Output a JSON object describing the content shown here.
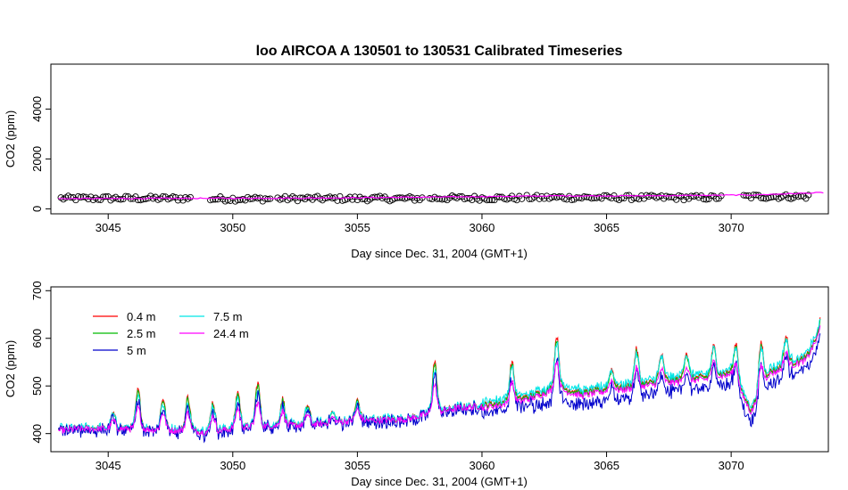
{
  "chart_data": [
    {
      "type": "scatter",
      "title": "loo   AIRCOA  A    130501  to  130531   Calibrated Timeseries",
      "xlabel": "Day since Dec. 31, 2004 (GMT+1)",
      "ylabel": "CO2 (ppm)",
      "xlim": [
        3042.7,
        3073.9
      ],
      "ylim": [
        -200,
        5800
      ],
      "x_ticks": [
        3045,
        3050,
        3055,
        3060,
        3065,
        3070
      ],
      "y_ticks": [
        0,
        2000,
        4000
      ],
      "colors": {
        "points": "#000000",
        "line": "#ff00ff",
        "line2": "#0000cc"
      },
      "point_clusters": [
        {
          "x_start": 3043.1,
          "x_end": 3048.3,
          "y": 420
        },
        {
          "x_start": 3049.1,
          "x_end": 3051.5,
          "y": 400
        },
        {
          "x_start": 3051.8,
          "x_end": 3057.6,
          "y": 410
        },
        {
          "x_start": 3057.9,
          "x_end": 3061.6,
          "y": 430
        },
        {
          "x_start": 3061.8,
          "x_end": 3069.6,
          "y": 450
        },
        {
          "x_start": 3070.5,
          "x_end": 3073.1,
          "y": 490
        }
      ],
      "line": {
        "x": [
          3043.0,
          3048,
          3053,
          3058,
          3063,
          3066,
          3069,
          3071,
          3073.7
        ],
        "y": [
          410,
          420,
          430,
          470,
          520,
          520,
          540,
          560,
          650
        ]
      }
    },
    {
      "type": "line",
      "xlabel": "Day since Dec. 31, 2004 (GMT+1)",
      "ylabel": "CO2 (ppm)",
      "xlim": [
        3042.7,
        3073.9
      ],
      "ylim": [
        362,
        708
      ],
      "x_ticks": [
        3045,
        3050,
        3055,
        3060,
        3065,
        3070
      ],
      "y_ticks": [
        400,
        500,
        600,
        700
      ],
      "legend_position": "top-left",
      "series": [
        {
          "name": "0.4 m",
          "color": "#ff0000",
          "peak_scale": 1.0,
          "offset": 0
        },
        {
          "name": "2.5 m",
          "color": "#00bb00",
          "peak_scale": 0.95,
          "offset": -2
        },
        {
          "name": "5 m",
          "color": "#0000cc",
          "peak_scale": 0.75,
          "offset": -18
        },
        {
          "name": "7.5 m",
          "color": "#00e5e5",
          "peak_scale": 0.8,
          "offset": 6
        },
        {
          "name": "24.4 m",
          "color": "#ff00ff",
          "peak_scale": 0.55,
          "offset": -6
        }
      ],
      "baseline": {
        "x": [
          3043.0,
          3044.0,
          3045.0,
          3046.0,
          3047.0,
          3048.0,
          3049.0,
          3050.0,
          3051.0,
          3052.0,
          3053.0,
          3054.0,
          3055.0,
          3056.0,
          3057.0,
          3058.0,
          3059.0,
          3060.0,
          3061.0,
          3062.0,
          3063.0,
          3064.0,
          3065.0,
          3066.0,
          3067.0,
          3068.0,
          3069.0,
          3070.0,
          3070.8,
          3071.5,
          3072.0,
          3073.0,
          3073.6
        ],
        "y": [
          408,
          412,
          412,
          412,
          410,
          408,
          405,
          412,
          418,
          418,
          420,
          425,
          430,
          430,
          432,
          445,
          455,
          460,
          468,
          480,
          500,
          485,
          495,
          500,
          510,
          515,
          520,
          530,
          450,
          530,
          540,
          560,
          620
        ]
      },
      "peaks": [
        {
          "x": 3045.2,
          "h": 30
        },
        {
          "x": 3046.2,
          "h": 80
        },
        {
          "x": 3047.2,
          "h": 65
        },
        {
          "x": 3048.2,
          "h": 70
        },
        {
          "x": 3049.2,
          "h": 60
        },
        {
          "x": 3050.2,
          "h": 75
        },
        {
          "x": 3051.0,
          "h": 90
        },
        {
          "x": 3052.0,
          "h": 55
        },
        {
          "x": 3053.0,
          "h": 40
        },
        {
          "x": 3054.0,
          "h": 20
        },
        {
          "x": 3055.0,
          "h": 40
        },
        {
          "x": 3058.1,
          "h": 105
        },
        {
          "x": 3061.2,
          "h": 80
        },
        {
          "x": 3063.0,
          "h": 105
        },
        {
          "x": 3065.2,
          "h": 40
        },
        {
          "x": 3066.2,
          "h": 75
        },
        {
          "x": 3067.2,
          "h": 55
        },
        {
          "x": 3068.2,
          "h": 55
        },
        {
          "x": 3069.3,
          "h": 60
        },
        {
          "x": 3070.2,
          "h": 80
        },
        {
          "x": 3071.2,
          "h": 95
        },
        {
          "x": 3072.2,
          "h": 60
        },
        {
          "x": 3073.7,
          "h": 70
        }
      ]
    }
  ]
}
